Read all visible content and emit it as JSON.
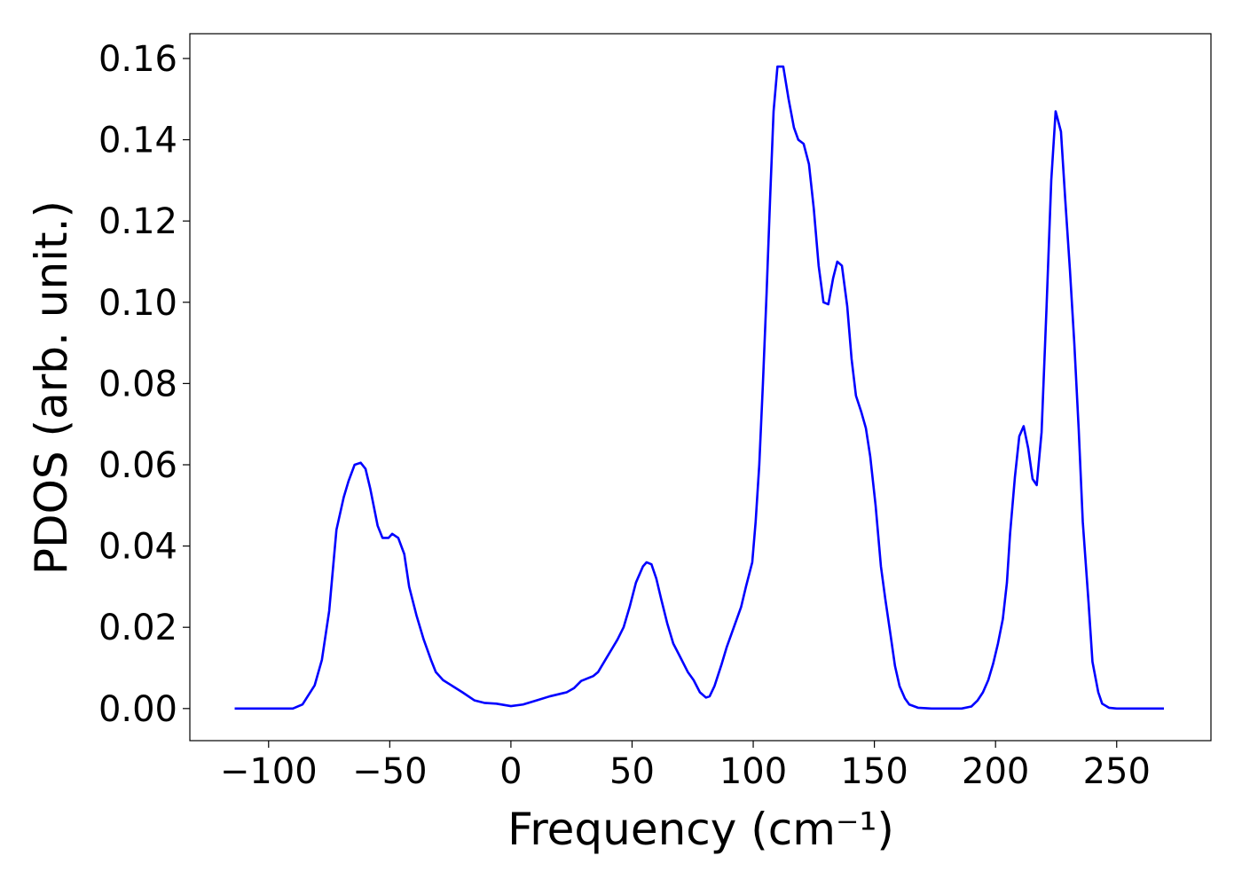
{
  "chart_data": {
    "type": "line",
    "x_label": "Frequency (cm⁻¹)",
    "y_label": "PDOS (arb. unit.)",
    "color": "#0000ff",
    "x": [
      -114,
      -90,
      -86,
      -81,
      -78,
      -75,
      -72,
      -69,
      -67,
      -64.5,
      -62,
      -60,
      -58,
      -55,
      -53,
      -50.5,
      -49,
      -46.5,
      -44,
      -42,
      -39,
      -36,
      -33,
      -31,
      -28,
      -24,
      -20,
      -15,
      -11,
      -6,
      0,
      5,
      10.6,
      16,
      23,
      26,
      29,
      34,
      36,
      39,
      42,
      44,
      46.5,
      49,
      51.6,
      54.5,
      56,
      58,
      60,
      62,
      64.5,
      67,
      69.6,
      73,
      75.4,
      78,
      80.5,
      82,
      84,
      87,
      89,
      92,
      95,
      97,
      99.6,
      101,
      102.5,
      104,
      105.5,
      107,
      108.4,
      110,
      112.4,
      114.6,
      116.8,
      118.6,
      120.8,
      123,
      125,
      127,
      129,
      131,
      133,
      134.7,
      136.6,
      138.8,
      140.6,
      142.4,
      144.6,
      146.5,
      148.3,
      150.5,
      152.7,
      154.5,
      156.7,
      158.5,
      160.4,
      162.6,
      164.4,
      168,
      173.6,
      186,
      190,
      192.6,
      194.8,
      197,
      199,
      201,
      203,
      204.7,
      206,
      208,
      209.8,
      211.6,
      213.5,
      215.3,
      217,
      219,
      221,
      223,
      224.8,
      227,
      228.8,
      230.7,
      232.5,
      234.3,
      236,
      238.4,
      240,
      242.4,
      244,
      246.8,
      250,
      269.5
    ],
    "values": [
      0,
      0,
      0.001,
      0.0057,
      0.012,
      0.024,
      0.044,
      0.052,
      0.056,
      0.06,
      0.0605,
      0.059,
      0.054,
      0.045,
      0.042,
      0.042,
      0.043,
      0.042,
      0.038,
      0.03,
      0.023,
      0.017,
      0.012,
      0.009,
      0.007,
      0.0055,
      0.004,
      0.002,
      0.0014,
      0.0012,
      0.0006,
      0.001,
      0.002,
      0.003,
      0.004,
      0.005,
      0.0068,
      0.008,
      0.009,
      0.012,
      0.015,
      0.017,
      0.02,
      0.025,
      0.031,
      0.035,
      0.036,
      0.0355,
      0.032,
      0.027,
      0.021,
      0.016,
      0.013,
      0.009,
      0.007,
      0.004,
      0.0027,
      0.003,
      0.0055,
      0.011,
      0.015,
      0.02,
      0.025,
      0.03,
      0.036,
      0.046,
      0.06,
      0.08,
      0.102,
      0.126,
      0.147,
      0.158,
      0.158,
      0.15,
      0.143,
      0.14,
      0.139,
      0.134,
      0.123,
      0.109,
      0.1,
      0.0995,
      0.106,
      0.11,
      0.109,
      0.099,
      0.086,
      0.077,
      0.073,
      0.069,
      0.062,
      0.05,
      0.035,
      0.027,
      0.018,
      0.0105,
      0.0055,
      0.0025,
      0.001,
      0.0002,
      0,
      0,
      0.0005,
      0.002,
      0.004,
      0.007,
      0.011,
      0.016,
      0.022,
      0.031,
      0.043,
      0.057,
      0.067,
      0.0695,
      0.064,
      0.0565,
      0.055,
      0.068,
      0.098,
      0.13,
      0.147,
      0.142,
      0.125,
      0.108,
      0.09,
      0.069,
      0.046,
      0.026,
      0.0115,
      0.004,
      0.0012,
      0.0002,
      0,
      0
    ],
    "xlim": [
      -132.5,
      288.9
    ],
    "ylim": [
      -0.0079,
      0.1661
    ],
    "xticks": [
      {
        "value": -100,
        "label": "−100"
      },
      {
        "value": -50,
        "label": "−50"
      },
      0,
      50,
      100,
      150,
      200,
      250
    ],
    "yticks": [
      {
        "value": 0,
        "label": "0.00"
      },
      {
        "value": 0.02,
        "label": "0.02"
      },
      {
        "value": 0.04,
        "label": "0.04"
      },
      {
        "value": 0.06,
        "label": "0.06"
      },
      {
        "value": 0.08,
        "label": "0.08"
      },
      {
        "value": 0.1,
        "label": "0.10"
      },
      {
        "value": 0.12,
        "label": "0.12"
      },
      {
        "value": 0.14,
        "label": "0.14"
      },
      {
        "value": 0.16,
        "label": "0.16"
      }
    ],
    "grid": false
  }
}
